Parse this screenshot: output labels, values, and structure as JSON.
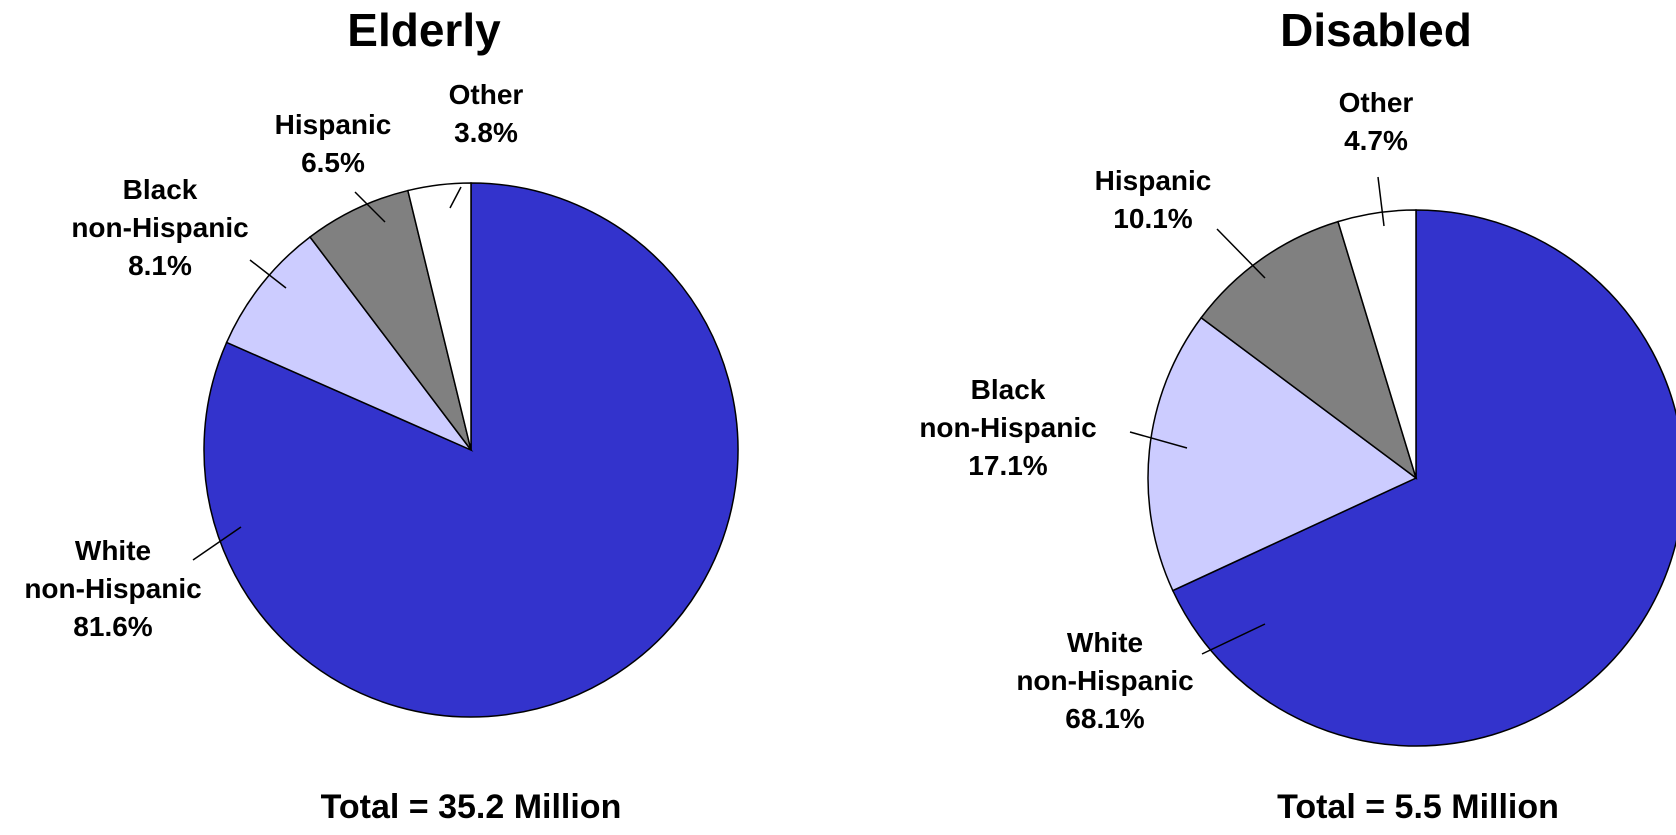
{
  "chart_data": [
    {
      "type": "pie",
      "title": "Elderly",
      "total_label": "Total = 35.2 Million",
      "slices": [
        {
          "label": [
            "White",
            "non-Hispanic"
          ],
          "value": 81.6,
          "value_label": "81.6%",
          "color": "#3333cc"
        },
        {
          "label": [
            "Black",
            "non-Hispanic"
          ],
          "value": 8.1,
          "value_label": "8.1%",
          "color": "#ccccff"
        },
        {
          "label": [
            "Hispanic"
          ],
          "value": 6.5,
          "value_label": "6.5%",
          "color": "#808080"
        },
        {
          "label": [
            "Other"
          ],
          "value": 3.8,
          "value_label": "3.8%",
          "color": "#ffffff"
        }
      ]
    },
    {
      "type": "pie",
      "title": "Disabled",
      "total_label": "Total = 5.5 Million",
      "slices": [
        {
          "label": [
            "White",
            "non-Hispanic"
          ],
          "value": 68.1,
          "value_label": "68.1%",
          "color": "#3333cc"
        },
        {
          "label": [
            "Black",
            "non-Hispanic"
          ],
          "value": 17.1,
          "value_label": "17.1%",
          "color": "#ccccff"
        },
        {
          "label": [
            "Hispanic"
          ],
          "value": 10.1,
          "value_label": "10.1%",
          "color": "#808080"
        },
        {
          "label": [
            "Other"
          ],
          "value": 4.7,
          "value_label": "4.7%",
          "color": "#ffffff"
        }
      ]
    }
  ]
}
